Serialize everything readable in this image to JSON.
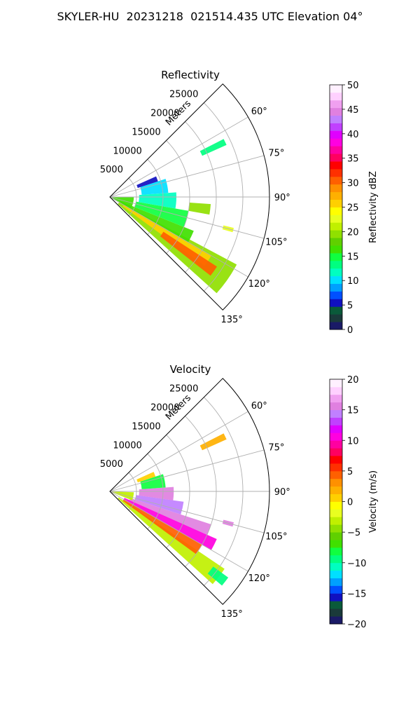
{
  "figure": {
    "title": "SKYLER-HU  20231218  021514.435 UTC Elevation 04°"
  },
  "chart_data": [
    {
      "type": "heatmap",
      "subtype": "polar-sector-ppi",
      "title": "Reflectivity",
      "radial_label": "Meters",
      "range_ticks": [
        "5000",
        "10000",
        "15000",
        "20000",
        "25000"
      ],
      "range_values": [
        5000,
        10000,
        15000,
        20000,
        25000
      ],
      "range_max": 30000,
      "azimuth_ticks": [
        "60°",
        "75°",
        "90°",
        "105°",
        "120°",
        "135°"
      ],
      "azimuth_values": [
        60,
        75,
        90,
        105,
        120,
        135
      ],
      "azimuth_range": [
        45,
        135
      ],
      "grid": true,
      "colorbar": {
        "label": "Reflectivity dBZ",
        "min": 0,
        "max": 50,
        "ticks": [
          "0",
          "5",
          "10",
          "15",
          "20",
          "25",
          "30",
          "35",
          "40",
          "45",
          "50"
        ],
        "tick_values": [
          0,
          5,
          10,
          15,
          20,
          25,
          30,
          35,
          40,
          45,
          50
        ],
        "colors": [
          "#1a1a66",
          "#1a3a3a",
          "#0a5a3a",
          "#1010c0",
          "#0050ff",
          "#00a0ff",
          "#00e0ff",
          "#00ffc0",
          "#00ff80",
          "#10ff40",
          "#40e000",
          "#60d000",
          "#90e000",
          "#c0f000",
          "#e8ff20",
          "#ffff00",
          "#ffd000",
          "#ffb000",
          "#ff9000",
          "#ff6000",
          "#ff3000",
          "#ff0000",
          "#ff0060",
          "#ff00a0",
          "#ff00e0",
          "#e000ff",
          "#c040ff",
          "#c080ff",
          "#e080e0",
          "#f0a0f0",
          "#ffd0ff",
          "#fff0ff"
        ]
      },
      "echo_regions": [
        {
          "az": [
            118,
            132
          ],
          "r": [
            2000,
            27000
          ],
          "value": 20
        },
        {
          "az": [
            120,
            126
          ],
          "r": [
            3000,
            22000
          ],
          "value": 26
        },
        {
          "az": [
            123,
            128
          ],
          "r": [
            12000,
            24000
          ],
          "value": 30
        },
        {
          "az": [
            112,
            120
          ],
          "r": [
            2000,
            17000
          ],
          "value": 17
        },
        {
          "az": [
            100,
            112
          ],
          "r": [
            5000,
            15000
          ],
          "value": 15
        },
        {
          "az": [
            86,
            100
          ],
          "r": [
            5500,
            12500
          ],
          "value": 12
        },
        {
          "az": [
            72,
            86
          ],
          "r": [
            6000,
            11000
          ],
          "value": 10
        },
        {
          "az": [
            66,
            72
          ],
          "r": [
            5500,
            9500
          ],
          "value": 6
        },
        {
          "az": [
            90,
            118
          ],
          "r": [
            0,
            4500
          ],
          "value": 16
        },
        {
          "az": [
            104,
            106
          ],
          "r": [
            22000,
            24000
          ],
          "value": 22
        },
        {
          "az": [
            63,
            66
          ],
          "r": [
            19000,
            24000
          ],
          "value": 14
        },
        {
          "az": [
            94,
            100
          ],
          "r": [
            15000,
            19000
          ],
          "value": 20
        }
      ]
    },
    {
      "type": "heatmap",
      "subtype": "polar-sector-ppi",
      "title": "Velocity",
      "radial_label": "Meters",
      "range_ticks": [
        "5000",
        "10000",
        "15000",
        "20000",
        "25000"
      ],
      "range_values": [
        5000,
        10000,
        15000,
        20000,
        25000
      ],
      "range_max": 30000,
      "azimuth_ticks": [
        "60°",
        "75°",
        "90°",
        "105°",
        "120°",
        "135°"
      ],
      "azimuth_values": [
        60,
        75,
        90,
        105,
        120,
        135
      ],
      "azimuth_range": [
        45,
        135
      ],
      "grid": true,
      "colorbar": {
        "label": "Velocity (m/s)",
        "min": -20,
        "max": 20,
        "ticks": [
          "−20",
          "−15",
          "−10",
          "−5",
          "0",
          "5",
          "10",
          "15",
          "20"
        ],
        "tick_values": [
          -20,
          -15,
          -10,
          -5,
          0,
          5,
          10,
          15,
          20
        ],
        "colors": [
          "#1a1a66",
          "#1a3a3a",
          "#0a5a3a",
          "#1010c0",
          "#0050ff",
          "#00a0ff",
          "#00e0ff",
          "#00ffc0",
          "#00ff80",
          "#10ff40",
          "#40e000",
          "#60d000",
          "#90e000",
          "#c0f000",
          "#e8ff20",
          "#ffff00",
          "#ffd000",
          "#ffb000",
          "#ff9000",
          "#ff6000",
          "#ff3000",
          "#ff0000",
          "#ff0060",
          "#ff00a0",
          "#ff00e0",
          "#e000ff",
          "#c040ff",
          "#c080ff",
          "#e080e0",
          "#f0a0f0",
          "#ffd0ff",
          "#fff0ff"
        ]
      },
      "echo_regions": [
        {
          "az": [
            124,
            132
          ],
          "r": [
            2000,
            26000
          ],
          "value": -3
        },
        {
          "az": [
            120,
            126
          ],
          "r": [
            3000,
            20000
          ],
          "value": 4
        },
        {
          "az": [
            114,
            120
          ],
          "r": [
            3000,
            22000
          ],
          "value": 10
        },
        {
          "az": [
            108,
            114
          ],
          "r": [
            4000,
            20000
          ],
          "value": 16
        },
        {
          "az": [
            98,
            108
          ],
          "r": [
            5000,
            14000
          ],
          "value": 14
        },
        {
          "az": [
            86,
            98
          ],
          "r": [
            5500,
            12000
          ],
          "value": 16
        },
        {
          "az": [
            72,
            86
          ],
          "r": [
            6000,
            10500
          ],
          "value": -8
        },
        {
          "az": [
            66,
            72
          ],
          "r": [
            5500,
            9000
          ],
          "value": 1
        },
        {
          "az": [
            92,
            112
          ],
          "r": [
            0,
            4500
          ],
          "value": -3
        },
        {
          "az": [
            126,
            130
          ],
          "r": [
            24000,
            27500
          ],
          "value": -10
        },
        {
          "az": [
            104,
            106
          ],
          "r": [
            22000,
            24000
          ],
          "value": 15
        },
        {
          "az": [
            63,
            66
          ],
          "r": [
            19000,
            24000
          ],
          "value": 2
        }
      ]
    }
  ]
}
